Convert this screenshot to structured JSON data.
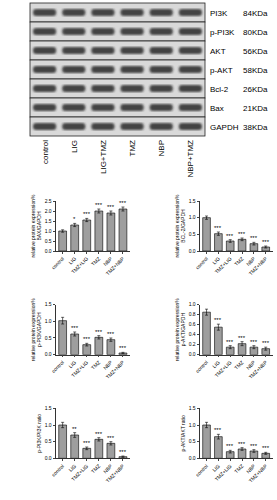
{
  "blot": {
    "rows": [
      {
        "label": "PI3K",
        "size": "84KDa"
      },
      {
        "label": "p-PI3K",
        "size": "80KDa"
      },
      {
        "label": "AKT",
        "size": "56KDa"
      },
      {
        "label": "p-AKT",
        "size": "58KDa"
      },
      {
        "label": "Bcl-2",
        "size": "26KDa"
      },
      {
        "label": "Bax",
        "size": "21KDa"
      },
      {
        "label": "GAPDH",
        "size": "38KDa"
      }
    ],
    "lanes": [
      "control",
      "LIG",
      "LIG+TMZ",
      "TMZ",
      "NBP",
      "NBP+TMZ"
    ]
  },
  "chart_data": [
    {
      "type": "bar",
      "y_label": "relative protein expression%\nBAX/GAPDH",
      "categories": [
        "control",
        "LIG",
        "TMZ+LIG",
        "TMZ",
        "NBP",
        "TMZ+NBP"
      ],
      "values": [
        1.0,
        1.3,
        1.55,
        2.0,
        1.9,
        2.1
      ],
      "errors": [
        0.06,
        0.08,
        0.08,
        0.1,
        0.1,
        0.1
      ],
      "significance": [
        null,
        "*",
        "***",
        "***",
        "***",
        "***"
      ],
      "color": "#9e9e9e",
      "ylim": [
        0,
        2.5
      ],
      "yticks": [
        {
          "value": 0,
          "label": "0.0"
        },
        0.5,
        {
          "value": 1,
          "label": "1.0"
        },
        1.5,
        {
          "value": 2,
          "label": "2.0"
        },
        2.5
      ]
    },
    {
      "type": "bar",
      "y_label": "relative protein expression%\nBCL-2/GAPDH",
      "categories": [
        "control",
        "LIG",
        "TMZ+LIG",
        "TMZ",
        "NBP",
        "TMZ+NBP"
      ],
      "values": [
        1.0,
        0.52,
        0.3,
        0.35,
        0.22,
        0.12
      ],
      "errors": [
        0.05,
        0.05,
        0.04,
        0.04,
        0.04,
        0.03
      ],
      "significance": [
        null,
        "***",
        "***",
        "***",
        "***",
        "***"
      ],
      "color": "#9e9e9e",
      "ylim": [
        0,
        1.5
      ],
      "yticks": [
        {
          "value": 0,
          "label": "0.0"
        },
        0.5,
        {
          "value": 1,
          "label": "1.0"
        },
        1.5
      ]
    },
    {
      "type": "bar",
      "y_label": "relative protein expression%\np-PI3K/GAPDH",
      "categories": [
        "control",
        "LIG",
        "TMZ+LIG",
        "TMZ",
        "NBP",
        "TMZ+NBP"
      ],
      "values": [
        1.02,
        0.62,
        0.3,
        0.52,
        0.45,
        0.05
      ],
      "errors": [
        0.1,
        0.06,
        0.04,
        0.05,
        0.05,
        0.02
      ],
      "significance": [
        null,
        "***",
        "***",
        "***",
        "***",
        "***"
      ],
      "color": "#9e9e9e",
      "ylim": [
        0,
        1.5
      ],
      "yticks": [
        {
          "value": 0,
          "label": "0.0"
        },
        0.5,
        {
          "value": 1,
          "label": "1.0"
        },
        1.5
      ]
    },
    {
      "type": "bar",
      "y_label": "relative protein expression%\np-AKT/GAPDH",
      "categories": [
        "control",
        "LIG",
        "TMZ+LIG",
        "TMZ",
        "NBP",
        "TMZ+NBP"
      ],
      "values": [
        0.85,
        0.55,
        0.15,
        0.22,
        0.15,
        0.12
      ],
      "errors": [
        0.06,
        0.06,
        0.03,
        0.04,
        0.03,
        0.03
      ],
      "significance": [
        null,
        "***",
        "***",
        "***",
        "***",
        "***"
      ],
      "color": "#9e9e9e",
      "ylim": [
        0,
        1.0
      ],
      "yticks": [
        {
          "value": 0,
          "label": "0.0"
        },
        0.2,
        0.4,
        0.6,
        0.8,
        {
          "value": 1,
          "label": "1.0"
        }
      ]
    },
    {
      "type": "bar",
      "y_label": "p-PI3K/PI3K ratio",
      "categories": [
        "control",
        "LIG",
        "TMZ+LIG",
        "TMZ",
        "NBP",
        "TMZ+NBP"
      ],
      "values": [
        1.0,
        0.7,
        0.3,
        0.57,
        0.45,
        0.05
      ],
      "errors": [
        0.08,
        0.07,
        0.04,
        0.05,
        0.05,
        0.02
      ],
      "significance": [
        null,
        "**",
        "***",
        "***",
        "***",
        "***"
      ],
      "color": "#9e9e9e",
      "ylim": [
        0,
        1.5
      ],
      "yticks": [
        {
          "value": 0,
          "label": "0.0"
        },
        0.5,
        {
          "value": 1,
          "label": "1.0"
        },
        1.5
      ]
    },
    {
      "type": "bar",
      "y_label": "p-AKT/AKT ratio",
      "categories": [
        "control",
        "LIG",
        "TMZ+LIG",
        "TMZ",
        "NBP",
        "TMZ+NBP"
      ],
      "values": [
        1.0,
        0.65,
        0.2,
        0.28,
        0.22,
        0.15
      ],
      "errors": [
        0.08,
        0.07,
        0.04,
        0.04,
        0.04,
        0.03
      ],
      "significance": [
        null,
        "***",
        "***",
        "***",
        "***",
        "***"
      ],
      "color": "#9e9e9e",
      "ylim": [
        0,
        1.5
      ],
      "yticks": [
        {
          "value": 0,
          "label": "0.0"
        },
        0.5,
        {
          "value": 1,
          "label": "1.0"
        },
        1.5
      ]
    }
  ]
}
